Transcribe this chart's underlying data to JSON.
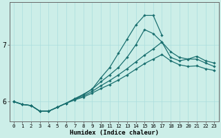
{
  "xlabel": "Humidex (Indice chaleur)",
  "xlim": [
    -0.5,
    23.5
  ],
  "ylim": [
    5.65,
    7.75
  ],
  "yticks": [
    6,
    7
  ],
  "xticks": [
    0,
    1,
    2,
    3,
    4,
    5,
    6,
    7,
    8,
    9,
    10,
    11,
    12,
    13,
    14,
    15,
    16,
    17,
    18,
    19,
    20,
    21,
    22,
    23
  ],
  "background_color": "#cceee8",
  "line_color": "#1a7070",
  "grid_color": "#aadddd",
  "lines": [
    {
      "x": [
        0,
        1,
        2,
        3,
        4,
        5,
        6,
        7,
        8,
        9,
        10,
        11,
        12,
        13,
        14,
        15,
        16,
        17
      ],
      "y": [
        6.0,
        5.95,
        5.93,
        5.83,
        5.83,
        5.9,
        5.97,
        6.05,
        6.12,
        6.22,
        6.42,
        6.6,
        6.85,
        7.1,
        7.35,
        7.52,
        7.52,
        7.17
      ]
    },
    {
      "x": [
        0,
        1,
        2,
        3,
        4,
        5,
        6,
        7,
        8,
        9,
        10,
        11,
        12,
        13,
        14,
        15,
        16,
        17,
        18,
        19,
        20,
        21,
        22,
        23
      ],
      "y": [
        6.0,
        5.95,
        5.93,
        5.83,
        5.83,
        5.9,
        5.97,
        6.05,
        6.13,
        6.22,
        6.35,
        6.47,
        6.6,
        6.78,
        7.0,
        7.27,
        7.2,
        7.05,
        6.78,
        6.72,
        6.75,
        6.8,
        6.72,
        6.68
      ]
    },
    {
      "x": [
        0,
        1,
        2,
        3,
        4,
        5,
        6,
        7,
        8,
        9,
        10,
        11,
        12,
        13,
        14,
        15,
        16,
        17,
        18,
        19,
        20,
        21,
        22,
        23
      ],
      "y": [
        6.0,
        5.95,
        5.93,
        5.83,
        5.83,
        5.9,
        5.97,
        6.04,
        6.1,
        6.18,
        6.28,
        6.37,
        6.47,
        6.58,
        6.7,
        6.82,
        6.93,
        7.05,
        6.88,
        6.78,
        6.75,
        6.75,
        6.68,
        6.62
      ]
    },
    {
      "x": [
        0,
        1,
        2,
        3,
        4,
        5,
        6,
        7,
        8,
        9,
        10,
        11,
        12,
        13,
        14,
        15,
        16,
        17,
        18,
        19,
        20,
        21,
        22,
        23
      ],
      "y": [
        6.0,
        5.95,
        5.93,
        5.83,
        5.83,
        5.9,
        5.97,
        6.03,
        6.08,
        6.15,
        6.23,
        6.3,
        6.38,
        6.47,
        6.57,
        6.67,
        6.75,
        6.83,
        6.72,
        6.65,
        6.62,
        6.63,
        6.58,
        6.55
      ]
    }
  ]
}
